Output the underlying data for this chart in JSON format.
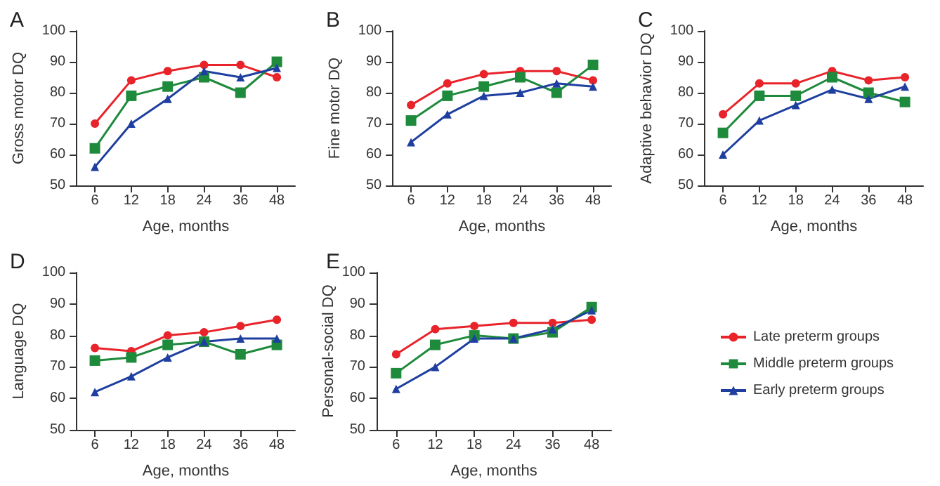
{
  "chart_data": [
    {
      "type": "line",
      "title": "A",
      "xlabel": "Age, months",
      "ylabel": "Gross motor DQ",
      "categories": [
        "6",
        "12",
        "18",
        "24",
        "36",
        "48"
      ],
      "ylim": [
        50,
        100
      ],
      "yticks": [
        50,
        60,
        70,
        80,
        90,
        100
      ],
      "series": [
        {
          "color": "#e8232a",
          "marker": "circle",
          "values": [
            70,
            84,
            87,
            89,
            89,
            85
          ]
        },
        {
          "color": "#1e8a3c",
          "marker": "square",
          "values": [
            62,
            79,
            82,
            85,
            80,
            90
          ]
        },
        {
          "color": "#1f3fa0",
          "marker": "triangle",
          "values": [
            56,
            70,
            78,
            87,
            85,
            88
          ]
        }
      ]
    },
    {
      "type": "line",
      "title": "B",
      "xlabel": "Age, months",
      "ylabel": "Fine motor DQ",
      "categories": [
        "6",
        "12",
        "18",
        "24",
        "36",
        "48"
      ],
      "ylim": [
        50,
        100
      ],
      "yticks": [
        50,
        60,
        70,
        80,
        90,
        100
      ],
      "series": [
        {
          "color": "#e8232a",
          "marker": "circle",
          "values": [
            76,
            83,
            86,
            87,
            87,
            84
          ]
        },
        {
          "color": "#1e8a3c",
          "marker": "square",
          "values": [
            71,
            79,
            82,
            85,
            80,
            89
          ]
        },
        {
          "color": "#1f3fa0",
          "marker": "triangle",
          "values": [
            64,
            73,
            79,
            80,
            83,
            82
          ]
        }
      ]
    },
    {
      "type": "line",
      "title": "C",
      "xlabel": "Age, months",
      "ylabel": "Adaptive behavior DQ",
      "categories": [
        "6",
        "12",
        "18",
        "24",
        "36",
        "48"
      ],
      "ylim": [
        50,
        100
      ],
      "yticks": [
        50,
        60,
        70,
        80,
        90,
        100
      ],
      "series": [
        {
          "color": "#e8232a",
          "marker": "circle",
          "values": [
            73,
            83,
            83,
            87,
            84,
            85
          ]
        },
        {
          "color": "#1e8a3c",
          "marker": "square",
          "values": [
            67,
            79,
            79,
            85,
            80,
            77
          ]
        },
        {
          "color": "#1f3fa0",
          "marker": "triangle",
          "values": [
            60,
            71,
            76,
            81,
            78,
            82
          ]
        }
      ]
    },
    {
      "type": "line",
      "title": "D",
      "xlabel": "Age, months",
      "ylabel": "Language DQ",
      "categories": [
        "6",
        "12",
        "18",
        "24",
        "36",
        "48"
      ],
      "ylim": [
        50,
        100
      ],
      "yticks": [
        50,
        60,
        70,
        80,
        90,
        100
      ],
      "series": [
        {
          "color": "#e8232a",
          "marker": "circle",
          "values": [
            76,
            75,
            80,
            81,
            83,
            85
          ]
        },
        {
          "color": "#1e8a3c",
          "marker": "square",
          "values": [
            72,
            73,
            77,
            78,
            74,
            77
          ]
        },
        {
          "color": "#1f3fa0",
          "marker": "triangle",
          "values": [
            62,
            67,
            73,
            78,
            79,
            79
          ]
        }
      ]
    },
    {
      "type": "line",
      "title": "E",
      "xlabel": "Age, months",
      "ylabel": "Personal-social DQ",
      "categories": [
        "6",
        "12",
        "18",
        "24",
        "36",
        "48"
      ],
      "ylim": [
        50,
        100
      ],
      "yticks": [
        50,
        60,
        70,
        80,
        90,
        100
      ],
      "legend": "right",
      "series": [
        {
          "name": "Late preterm groups",
          "color": "#e8232a",
          "marker": "circle",
          "values": [
            74,
            82,
            83,
            84,
            84,
            85
          ]
        },
        {
          "name": "Middle preterm groups",
          "color": "#1e8a3c",
          "marker": "square",
          "values": [
            68,
            77,
            80,
            79,
            81,
            89
          ]
        },
        {
          "name": "Early preterm groups",
          "color": "#1f3fa0",
          "marker": "triangle",
          "values": [
            63,
            70,
            79,
            79,
            82,
            88
          ]
        }
      ]
    }
  ]
}
